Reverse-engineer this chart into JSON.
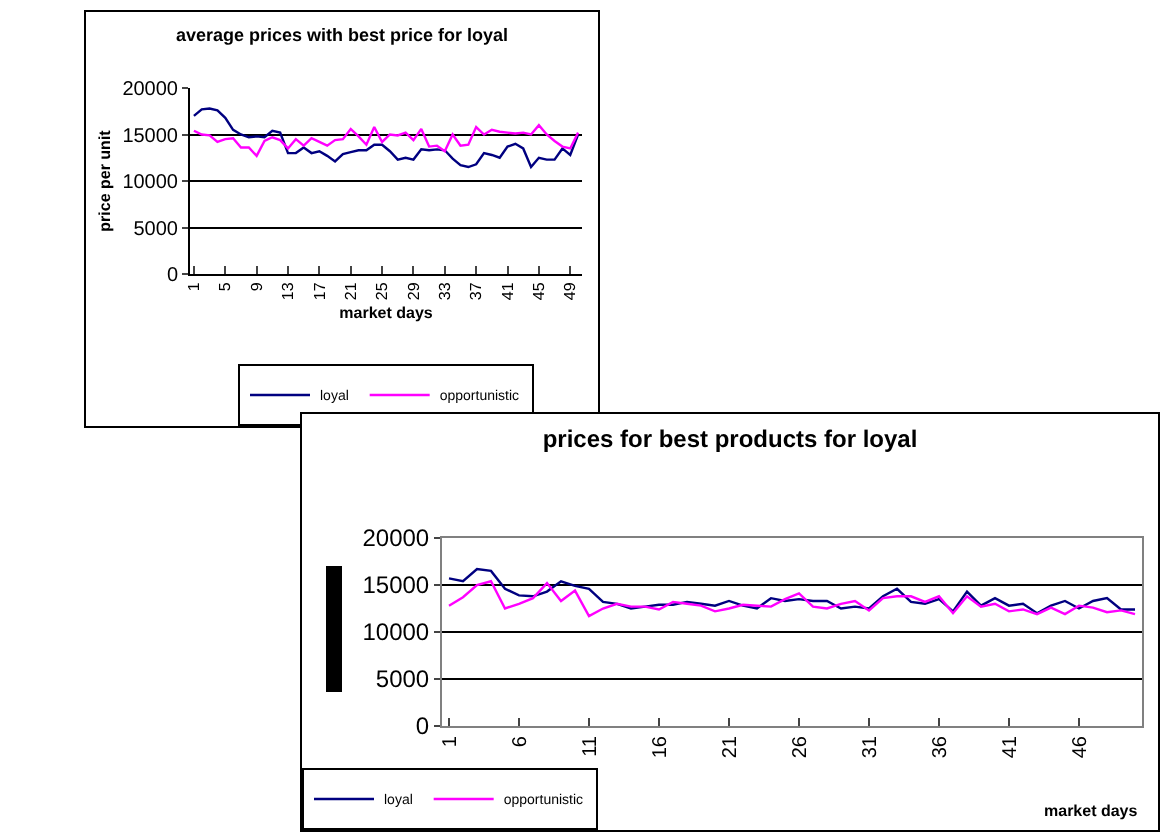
{
  "chart_data": [
    {
      "type": "line",
      "title": "average prices with best price for loyal",
      "xlabel": "market days",
      "ylabel": "price per unit",
      "x": [
        1,
        2,
        3,
        4,
        5,
        6,
        7,
        8,
        9,
        10,
        11,
        12,
        13,
        14,
        15,
        16,
        17,
        18,
        19,
        20,
        21,
        22,
        23,
        24,
        25,
        26,
        27,
        28,
        29,
        30,
        31,
        32,
        33,
        34,
        35,
        36,
        37,
        38,
        39,
        40,
        41,
        42,
        43,
        44,
        45,
        46,
        47,
        48,
        49,
        50
      ],
      "series": [
        {
          "name": "loyal",
          "color": "#000080",
          "values": [
            17000,
            17700,
            17800,
            17600,
            16800,
            15500,
            15000,
            14700,
            14800,
            14700,
            15400,
            15200,
            13000,
            13000,
            13600,
            13000,
            13200,
            12700,
            12100,
            12900,
            13100,
            13300,
            13300,
            13900,
            13900,
            13200,
            12300,
            12500,
            12300,
            13400,
            13300,
            13400,
            13300,
            12400,
            11700,
            11500,
            11800,
            13000,
            12800,
            12500,
            13700,
            14000,
            13500,
            11500,
            12500,
            12300,
            12300,
            13500,
            12800,
            15000
          ]
        },
        {
          "name": "opportunistic",
          "color": "#ff00ff",
          "values": [
            15400,
            15000,
            14900,
            14200,
            14500,
            14600,
            13600,
            13600,
            12700,
            14300,
            14700,
            14400,
            13500,
            14500,
            13800,
            14600,
            14200,
            13800,
            14400,
            14500,
            15600,
            14800,
            13900,
            15800,
            14200,
            15000,
            14900,
            15200,
            14400,
            15600,
            13700,
            13800,
            13200,
            15000,
            13800,
            13900,
            15800,
            15000,
            15500,
            15300,
            15200,
            15100,
            15200,
            15000,
            16000,
            15000,
            14300,
            13700,
            13500,
            15200
          ]
        }
      ],
      "xlim": [
        0.5,
        50.5
      ],
      "xticks": [
        1,
        5,
        9,
        13,
        17,
        21,
        25,
        29,
        33,
        37,
        41,
        45,
        49
      ],
      "ylim": [
        0,
        20000
      ],
      "yticks": [
        0,
        5000,
        10000,
        15000,
        20000
      ],
      "grid": "y",
      "legend": "bottom",
      "marker": "none",
      "line_style": "solid"
    },
    {
      "type": "line",
      "title": "prices for best products for loyal",
      "xlabel": "market days",
      "x": [
        1,
        2,
        3,
        4,
        5,
        6,
        7,
        8,
        9,
        10,
        11,
        12,
        13,
        14,
        15,
        16,
        17,
        18,
        19,
        20,
        21,
        22,
        23,
        24,
        25,
        26,
        27,
        28,
        29,
        30,
        31,
        32,
        33,
        34,
        35,
        36,
        37,
        38,
        39,
        40,
        41,
        42,
        43,
        44,
        45,
        46,
        47,
        48,
        49,
        50
      ],
      "series": [
        {
          "name": "loyal",
          "color": "#000080",
          "values": [
            15700,
            15400,
            16700,
            16500,
            14600,
            13900,
            13800,
            14300,
            15400,
            14900,
            14600,
            13200,
            13000,
            12500,
            12700,
            12900,
            12900,
            13200,
            13000,
            12800,
            13300,
            12800,
            12500,
            13600,
            13300,
            13500,
            13300,
            13300,
            12500,
            12700,
            12500,
            13800,
            14600,
            13200,
            13000,
            13500,
            12200,
            14300,
            12800,
            13600,
            12800,
            13000,
            12000,
            12800,
            13300,
            12500,
            13300,
            13600,
            12400,
            12400
          ]
        },
        {
          "name": "opportunistic",
          "color": "#ff00ff",
          "values": [
            12800,
            13700,
            15000,
            15400,
            12500,
            13000,
            13600,
            15200,
            13300,
            14400,
            11700,
            12500,
            13000,
            12700,
            12700,
            12400,
            13200,
            13000,
            12800,
            12200,
            12500,
            12900,
            12800,
            12700,
            13500,
            14100,
            12700,
            12500,
            13000,
            13300,
            12300,
            13600,
            13800,
            13800,
            13200,
            13800,
            12000,
            13800,
            12700,
            13000,
            12200,
            12400,
            11900,
            12600,
            11900,
            12800,
            12600,
            12100,
            12300,
            11900
          ]
        }
      ],
      "xlim": [
        0.5,
        50.5
      ],
      "xticks": [
        1,
        6,
        11,
        16,
        21,
        26,
        31,
        36,
        41,
        46
      ],
      "ylim": [
        0,
        20000
      ],
      "yticks": [
        0,
        5000,
        10000,
        15000,
        20000
      ],
      "grid": "y",
      "legend": "bottom left",
      "marker": "none",
      "line_style": "solid"
    }
  ]
}
